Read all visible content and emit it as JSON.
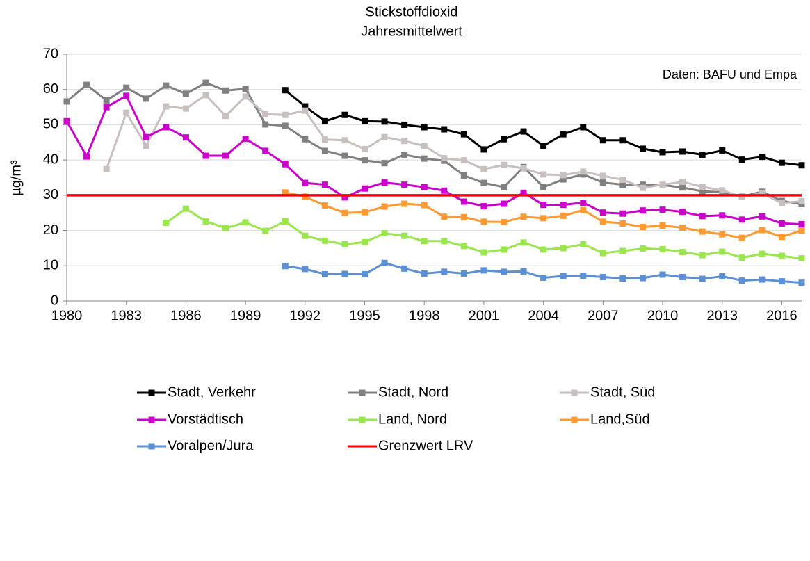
{
  "chart_data": {
    "type": "line",
    "title": [
      "Stickstoffdioxid",
      "Jahresmittelwert"
    ],
    "y_label": "µg/m³",
    "annotation": "Daten: BAFU und Empa",
    "x": [
      1980,
      1981,
      1982,
      1983,
      1984,
      1985,
      1986,
      1987,
      1988,
      1989,
      1990,
      1991,
      1992,
      1993,
      1994,
      1995,
      1996,
      1997,
      1998,
      1999,
      2000,
      2001,
      2002,
      2003,
      2004,
      2005,
      2006,
      2007,
      2008,
      2009,
      2010,
      2011,
      2012,
      2013,
      2014,
      2015,
      2016,
      2017
    ],
    "xlim": [
      1980,
      2017
    ],
    "xticks": [
      1980,
      1983,
      1986,
      1989,
      1992,
      1995,
      1998,
      2001,
      2004,
      2007,
      2010,
      2013,
      2016
    ],
    "ylim": [
      0,
      70
    ],
    "yticks": [
      0,
      10,
      20,
      30,
      40,
      50,
      60,
      70
    ],
    "grid": true,
    "series": [
      {
        "name": "Stadt, Verkehr",
        "color": "#000000",
        "marker": true,
        "values": [
          null,
          null,
          null,
          null,
          null,
          null,
          null,
          null,
          null,
          null,
          null,
          59.8,
          55.2,
          51,
          52.8,
          51,
          50.9,
          50,
          49.3,
          48.7,
          47.3,
          43,
          45.9,
          48.1,
          44,
          47.3,
          49.3,
          45.6,
          45.6,
          43.2,
          42.2,
          42.4,
          41.5,
          42.7,
          40.1,
          40.9,
          39.2,
          38.5
        ]
      },
      {
        "name": "Stadt, Nord",
        "color": "#808080",
        "marker": true,
        "values": [
          56.6,
          61.3,
          56.9,
          60.5,
          57.4,
          61.1,
          58.8,
          61.9,
          59.7,
          60.2,
          50.1,
          49.7,
          45.9,
          42.6,
          41.2,
          39.9,
          39.1,
          41.5,
          40.4,
          39.8,
          35.6,
          33.5,
          32.3,
          38,
          32.3,
          34.5,
          35.9,
          33.6,
          33,
          33,
          32.9,
          32.2,
          31.1,
          30.9,
          29.6,
          31,
          28.4,
          27.5
        ]
      },
      {
        "name": "Stadt, Süd",
        "color": "#c8bfbf",
        "marker": true,
        "values": [
          null,
          null,
          37.4,
          53.4,
          44,
          55.2,
          54.6,
          58.4,
          52.5,
          58,
          53,
          52.8,
          54,
          45.8,
          45.6,
          43.1,
          46.5,
          45.4,
          44,
          40.5,
          39.9,
          37.4,
          38.6,
          37.6,
          35.9,
          35.7,
          36.7,
          35.5,
          34.4,
          32.1,
          33,
          33.8,
          32.4,
          31.4,
          29.5,
          30.5,
          27.8,
          28.3
        ]
      },
      {
        "name": "Vorstädtisch",
        "color": "#cc00cc",
        "marker": true,
        "values": [
          51,
          41,
          55,
          58.2,
          46.5,
          49.3,
          46.4,
          41.2,
          41.2,
          46,
          42.6,
          38.8,
          33.5,
          33,
          29.4,
          31.9,
          33.6,
          33,
          32.3,
          31.3,
          28.2,
          26.9,
          27.6,
          30.7,
          27.3,
          27.3,
          27.9,
          25.1,
          24.8,
          25.7,
          25.9,
          25.3,
          24.1,
          24.3,
          23.1,
          24,
          22,
          21.8
        ]
      },
      {
        "name": "Land, Nord",
        "color": "#99e64d",
        "marker": true,
        "values": [
          null,
          null,
          null,
          null,
          null,
          22.2,
          26.2,
          22.6,
          20.7,
          22.3,
          19.9,
          22.6,
          18.5,
          17.1,
          16.1,
          16.7,
          19.2,
          18.5,
          17,
          17,
          15.6,
          13.8,
          14.6,
          16.6,
          14.6,
          15,
          16.1,
          13.6,
          14.2,
          14.9,
          14.7,
          13.9,
          13,
          14,
          12.3,
          13.4,
          12.8,
          12.1
        ]
      },
      {
        "name": "Land,Süd",
        "color": "#ff9933",
        "marker": true,
        "values": [
          null,
          null,
          null,
          null,
          null,
          null,
          null,
          null,
          null,
          null,
          null,
          30.8,
          29.6,
          27.1,
          25,
          25.2,
          26.8,
          27.6,
          27.2,
          23.9,
          23.8,
          22.5,
          22.4,
          23.9,
          23.5,
          24.2,
          25.8,
          22.5,
          22,
          21,
          21.4,
          20.8,
          19.7,
          18.9,
          17.9,
          20.1,
          18.2,
          20
        ]
      },
      {
        "name": "Voralpen/Jura",
        "color": "#5b8fd6",
        "marker": true,
        "values": [
          null,
          null,
          null,
          null,
          null,
          null,
          null,
          null,
          null,
          null,
          null,
          9.9,
          9.1,
          7.6,
          7.7,
          7.6,
          10.8,
          9.2,
          7.8,
          8.3,
          7.8,
          8.7,
          8.3,
          8.4,
          6.6,
          7.1,
          7.2,
          6.8,
          6.4,
          6.5,
          7.5,
          6.8,
          6.3,
          7,
          5.8,
          6.1,
          5.6,
          5.2
        ]
      },
      {
        "name": "Grenzwert LRV",
        "color": "#ff0000",
        "marker": false,
        "values": [
          30,
          30,
          30,
          30,
          30,
          30,
          30,
          30,
          30,
          30,
          30,
          30,
          30,
          30,
          30,
          30,
          30,
          30,
          30,
          30,
          30,
          30,
          30,
          30,
          30,
          30,
          30,
          30,
          30,
          30,
          30,
          30,
          30,
          30,
          30,
          30,
          30,
          30
        ]
      }
    ]
  }
}
